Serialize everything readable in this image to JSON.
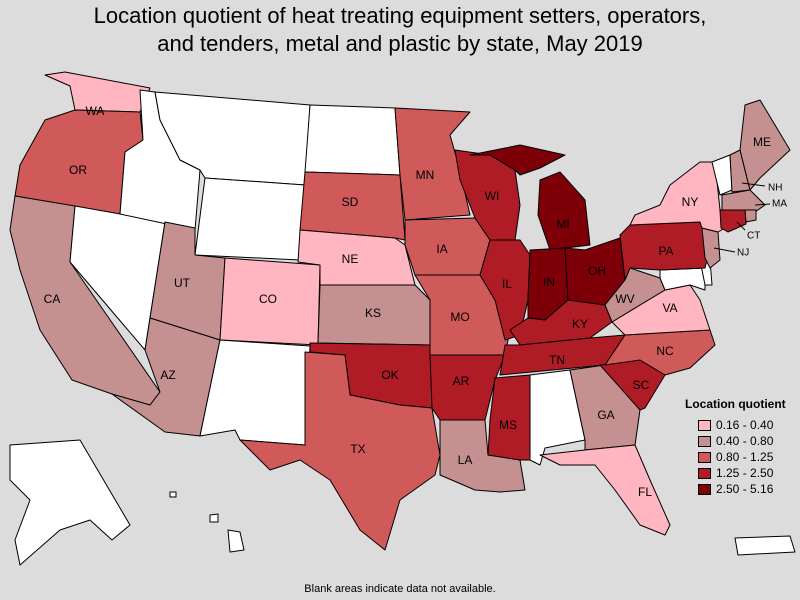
{
  "title_line1": "Location quotient of heat treating equipment setters, operators,",
  "title_line2": "and tenders, metal and plastic by state, May 2019",
  "legend": {
    "title": "Location quotient",
    "items": [
      {
        "label": "0.16 - 0.40",
        "color": "#ffb6c1"
      },
      {
        "label": "0.40 - 0.80",
        "color": "#c49090"
      },
      {
        "label": "0.80 - 1.25",
        "color": "#d05a5a"
      },
      {
        "label": "1.25 - 2.50",
        "color": "#b01c26"
      },
      {
        "label": "2.50 - 5.16",
        "color": "#7d0008"
      }
    ]
  },
  "no_data_color": "#ffffff",
  "footnote": "Blank areas indicate data not available.",
  "states": {
    "WA": {
      "label": "WA",
      "category": 0
    },
    "OR": {
      "label": "OR",
      "category": 2
    },
    "CA": {
      "label": "CA",
      "category": 1
    },
    "NV": {
      "label": "",
      "category": -1
    },
    "ID": {
      "label": "",
      "category": -1
    },
    "MT": {
      "label": "",
      "category": -1
    },
    "WY": {
      "label": "",
      "category": -1
    },
    "UT": {
      "label": "UT",
      "category": 1
    },
    "AZ": {
      "label": "AZ",
      "category": 1
    },
    "CO": {
      "label": "CO",
      "category": 0
    },
    "NM": {
      "label": "",
      "category": -1
    },
    "ND": {
      "label": "",
      "category": -1
    },
    "SD": {
      "label": "SD",
      "category": 2
    },
    "NE": {
      "label": "NE",
      "category": 0
    },
    "KS": {
      "label": "KS",
      "category": 1
    },
    "OK": {
      "label": "OK",
      "category": 3
    },
    "TX": {
      "label": "TX",
      "category": 2
    },
    "MN": {
      "label": "MN",
      "category": 2
    },
    "IA": {
      "label": "IA",
      "category": 2
    },
    "MO": {
      "label": "MO",
      "category": 2
    },
    "AR": {
      "label": "AR",
      "category": 3
    },
    "LA": {
      "label": "LA",
      "category": 1
    },
    "WI": {
      "label": "WI",
      "category": 3
    },
    "IL": {
      "label": "IL",
      "category": 3
    },
    "MI": {
      "label": "MI",
      "category": 4
    },
    "IN": {
      "label": "IN",
      "category": 4
    },
    "OH": {
      "label": "OH",
      "category": 4
    },
    "KY": {
      "label": "KY",
      "category": 3
    },
    "TN": {
      "label": "TN",
      "category": 3
    },
    "MS": {
      "label": "MS",
      "category": 3
    },
    "AL": {
      "label": "",
      "category": -1
    },
    "GA": {
      "label": "GA",
      "category": 1
    },
    "FL": {
      "label": "FL",
      "category": 0
    },
    "SC": {
      "label": "SC",
      "category": 3
    },
    "NC": {
      "label": "NC",
      "category": 2
    },
    "VA": {
      "label": "VA",
      "category": 0
    },
    "WV": {
      "label": "WV",
      "category": 1
    },
    "PA": {
      "label": "PA",
      "category": 3
    },
    "NY": {
      "label": "NY",
      "category": 0
    },
    "VT": {
      "label": "",
      "category": -1
    },
    "NH": {
      "label": "NH",
      "category": 1
    },
    "ME": {
      "label": "ME",
      "category": 1
    },
    "MA": {
      "label": "MA",
      "category": 1
    },
    "RI": {
      "label": "",
      "category": 1
    },
    "CT": {
      "label": "CT",
      "category": 3
    },
    "NJ": {
      "label": "NJ",
      "category": 1
    },
    "DE": {
      "label": "",
      "category": -1
    },
    "MD": {
      "label": "",
      "category": -1
    },
    "AK": {
      "label": "",
      "category": -1
    },
    "HI": {
      "label": "",
      "category": -1
    },
    "PR": {
      "label": "",
      "category": -1
    }
  }
}
